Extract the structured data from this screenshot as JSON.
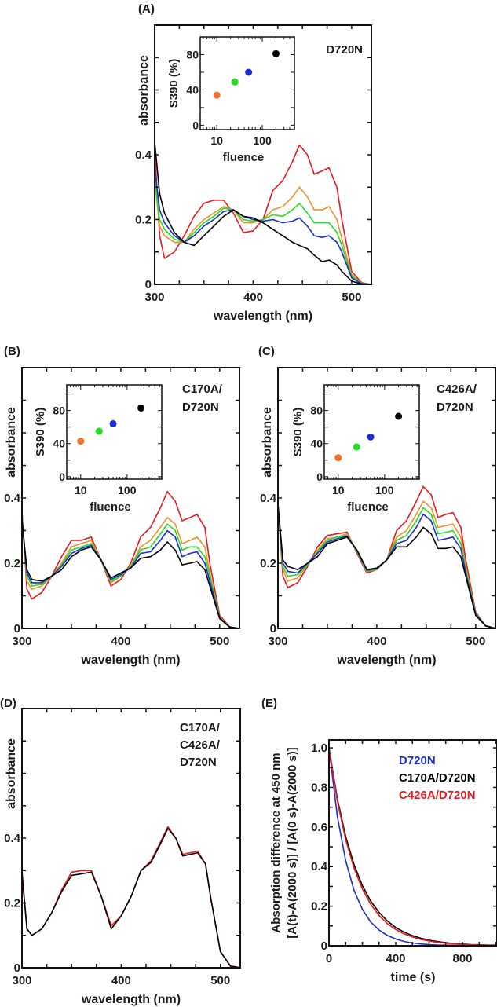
{
  "chart_data": [
    {
      "panel": "(A)",
      "type": "line",
      "xlabel": "wavelength (nm)",
      "ylabel": "absorbance",
      "xlim": [
        300,
        520
      ],
      "ylim": [
        0,
        0.8
      ],
      "xticks": [
        "300",
        "400",
        "500"
      ],
      "yticks": [
        "0",
        "0.2",
        "0.4"
      ],
      "annotation": [
        "D720N"
      ],
      "x": [
        300,
        305,
        310,
        320,
        330,
        340,
        350,
        360,
        370,
        380,
        390,
        400,
        410,
        420,
        430,
        440,
        447,
        455,
        462,
        470,
        477,
        485,
        490,
        500,
        510,
        520
      ],
      "series": [
        {
          "color": "#e8191e",
          "values": [
            0.42,
            0.15,
            0.08,
            0.1,
            0.15,
            0.21,
            0.25,
            0.26,
            0.26,
            0.22,
            0.16,
            0.165,
            0.2,
            0.29,
            0.32,
            0.38,
            0.43,
            0.4,
            0.34,
            0.35,
            0.36,
            0.3,
            0.2,
            0.04,
            0.005,
            0
          ]
        },
        {
          "color": "#f0902a",
          "values": [
            0.32,
            0.18,
            0.15,
            0.13,
            0.13,
            0.17,
            0.2,
            0.22,
            0.24,
            0.23,
            0.19,
            0.19,
            0.2,
            0.23,
            0.24,
            0.27,
            0.3,
            0.27,
            0.23,
            0.23,
            0.24,
            0.2,
            0.14,
            0.03,
            0.003,
            0
          ]
        },
        {
          "color": "#22dd22",
          "values": [
            0.33,
            0.2,
            0.17,
            0.14,
            0.13,
            0.16,
            0.19,
            0.21,
            0.235,
            0.23,
            0.2,
            0.195,
            0.2,
            0.215,
            0.21,
            0.23,
            0.25,
            0.22,
            0.19,
            0.19,
            0.19,
            0.16,
            0.12,
            0.025,
            0.003,
            0
          ]
        },
        {
          "color": "#1a2ed0",
          "values": [
            0.36,
            0.23,
            0.19,
            0.15,
            0.13,
            0.15,
            0.18,
            0.2,
            0.225,
            0.23,
            0.21,
            0.2,
            0.195,
            0.2,
            0.19,
            0.195,
            0.205,
            0.18,
            0.15,
            0.145,
            0.15,
            0.13,
            0.1,
            0.02,
            0.002,
            0
          ]
        },
        {
          "color": "#000000",
          "values": [
            0.44,
            0.28,
            0.22,
            0.16,
            0.13,
            0.12,
            0.15,
            0.18,
            0.21,
            0.23,
            0.21,
            0.205,
            0.19,
            0.17,
            0.15,
            0.13,
            0.12,
            0.11,
            0.09,
            0.07,
            0.075,
            0.06,
            0.04,
            0.01,
            0.001,
            0
          ]
        }
      ],
      "inset": {
        "type": "scatter",
        "xlabel": "fluence",
        "ylabel": "S390 (%)",
        "xscale": "log",
        "xlim": [
          4.3,
          510
        ],
        "ylim": [
          -5,
          100
        ],
        "xticks": [
          "10",
          "100"
        ],
        "yticks": [
          "0",
          "40",
          "80"
        ],
        "points": [
          {
            "x": 10,
            "y": 34,
            "color": "#f07030"
          },
          {
            "x": 25,
            "y": 49,
            "color": "#22dd22"
          },
          {
            "x": 50,
            "y": 60,
            "color": "#1a2ed0"
          },
          {
            "x": 200,
            "y": 81,
            "color": "#000000"
          }
        ]
      }
    },
    {
      "panel": "(B)",
      "type": "line",
      "xlabel": "wavelength (nm)",
      "ylabel": "absorbance",
      "xlim": [
        300,
        520
      ],
      "ylim": [
        0,
        0.8
      ],
      "xticks": [
        "300",
        "400",
        "500"
      ],
      "yticks": [
        "0",
        "0.2",
        "0.4"
      ],
      "annotation": [
        "C170A/",
        "D720N"
      ],
      "x": [
        300,
        305,
        310,
        320,
        330,
        340,
        350,
        360,
        370,
        380,
        390,
        400,
        410,
        420,
        430,
        440,
        447,
        455,
        462,
        470,
        477,
        485,
        490,
        500,
        510,
        520
      ],
      "series": [
        {
          "color": "#e8191e",
          "values": [
            0.36,
            0.12,
            0.09,
            0.11,
            0.16,
            0.22,
            0.27,
            0.27,
            0.28,
            0.21,
            0.13,
            0.15,
            0.2,
            0.28,
            0.31,
            0.37,
            0.42,
            0.39,
            0.33,
            0.34,
            0.35,
            0.31,
            0.2,
            0.04,
            0.005,
            0
          ]
        },
        {
          "color": "#f0902a",
          "values": [
            0.345,
            0.145,
            0.12,
            0.13,
            0.16,
            0.2,
            0.25,
            0.26,
            0.27,
            0.21,
            0.14,
            0.16,
            0.19,
            0.25,
            0.27,
            0.31,
            0.34,
            0.32,
            0.26,
            0.27,
            0.28,
            0.25,
            0.17,
            0.035,
            0.004,
            0
          ]
        },
        {
          "color": "#22dd22",
          "values": [
            0.34,
            0.16,
            0.13,
            0.135,
            0.16,
            0.195,
            0.24,
            0.25,
            0.26,
            0.21,
            0.145,
            0.16,
            0.19,
            0.24,
            0.25,
            0.29,
            0.32,
            0.3,
            0.24,
            0.25,
            0.25,
            0.22,
            0.16,
            0.033,
            0.004,
            0
          ]
        },
        {
          "color": "#1a2ed0",
          "values": [
            0.335,
            0.17,
            0.14,
            0.14,
            0.16,
            0.19,
            0.23,
            0.245,
            0.255,
            0.21,
            0.15,
            0.165,
            0.185,
            0.23,
            0.235,
            0.27,
            0.3,
            0.28,
            0.22,
            0.23,
            0.235,
            0.2,
            0.145,
            0.032,
            0.004,
            0
          ]
        },
        {
          "color": "#000000",
          "values": [
            0.33,
            0.18,
            0.15,
            0.145,
            0.16,
            0.18,
            0.22,
            0.24,
            0.25,
            0.21,
            0.155,
            0.17,
            0.185,
            0.215,
            0.22,
            0.24,
            0.265,
            0.24,
            0.195,
            0.2,
            0.205,
            0.18,
            0.13,
            0.03,
            0.004,
            0
          ]
        }
      ],
      "inset": {
        "type": "scatter",
        "xlabel": "fluence",
        "ylabel": "S390 (%)",
        "xscale": "log",
        "xlim": [
          5,
          560
        ],
        "ylim": [
          -3,
          111
        ],
        "xticks": [
          "10",
          "100"
        ],
        "yticks": [
          "0",
          "40",
          "80"
        ],
        "points": [
          {
            "x": 10,
            "y": 43,
            "color": "#f07030"
          },
          {
            "x": 25,
            "y": 55,
            "color": "#22dd22"
          },
          {
            "x": 50,
            "y": 64,
            "color": "#1a2ed0"
          },
          {
            "x": 200,
            "y": 83,
            "color": "#000000"
          }
        ]
      }
    },
    {
      "panel": "(C)",
      "type": "line",
      "xlabel": "wavelength (nm)",
      "ylabel": "absorbance",
      "xlim": [
        300,
        520
      ],
      "ylim": [
        0,
        0.8
      ],
      "xticks": [
        "300",
        "400",
        "500"
      ],
      "yticks": [
        "0",
        "0.2",
        "0.4"
      ],
      "annotation": [
        "C426A/",
        "D720N"
      ],
      "x": [
        300,
        305,
        310,
        320,
        330,
        340,
        350,
        360,
        370,
        380,
        390,
        400,
        410,
        420,
        430,
        440,
        447,
        455,
        462,
        470,
        477,
        485,
        490,
        500,
        510,
        520
      ],
      "series": [
        {
          "color": "#e8191e",
          "values": [
            0.38,
            0.16,
            0.125,
            0.14,
            0.19,
            0.25,
            0.285,
            0.29,
            0.295,
            0.23,
            0.17,
            0.18,
            0.21,
            0.3,
            0.33,
            0.39,
            0.435,
            0.41,
            0.34,
            0.35,
            0.355,
            0.31,
            0.21,
            0.05,
            0.008,
            0
          ]
        },
        {
          "color": "#f0902a",
          "values": [
            0.38,
            0.18,
            0.145,
            0.155,
            0.195,
            0.24,
            0.275,
            0.28,
            0.29,
            0.235,
            0.175,
            0.18,
            0.21,
            0.28,
            0.3,
            0.35,
            0.39,
            0.37,
            0.31,
            0.315,
            0.32,
            0.28,
            0.19,
            0.045,
            0.008,
            0
          ]
        },
        {
          "color": "#22dd22",
          "values": [
            0.38,
            0.19,
            0.16,
            0.165,
            0.195,
            0.235,
            0.27,
            0.28,
            0.285,
            0.235,
            0.175,
            0.182,
            0.21,
            0.27,
            0.285,
            0.33,
            0.37,
            0.35,
            0.29,
            0.295,
            0.3,
            0.26,
            0.18,
            0.045,
            0.008,
            0
          ]
        },
        {
          "color": "#1a2ed0",
          "values": [
            0.38,
            0.2,
            0.175,
            0.17,
            0.2,
            0.23,
            0.265,
            0.275,
            0.283,
            0.238,
            0.178,
            0.183,
            0.21,
            0.26,
            0.27,
            0.31,
            0.35,
            0.33,
            0.27,
            0.275,
            0.28,
            0.245,
            0.17,
            0.043,
            0.008,
            0
          ]
        },
        {
          "color": "#000000",
          "values": [
            0.38,
            0.21,
            0.19,
            0.18,
            0.2,
            0.22,
            0.26,
            0.27,
            0.28,
            0.24,
            0.18,
            0.185,
            0.21,
            0.25,
            0.25,
            0.28,
            0.31,
            0.29,
            0.245,
            0.245,
            0.25,
            0.22,
            0.16,
            0.04,
            0.008,
            0
          ]
        }
      ],
      "inset": {
        "type": "scatter",
        "xlabel": "fluence",
        "ylabel": "S390 (%)",
        "xscale": "log",
        "xlim": [
          5,
          560
        ],
        "ylim": [
          -3,
          111
        ],
        "xticks": [
          "10",
          "100"
        ],
        "yticks": [
          "0",
          "40",
          "80"
        ],
        "points": [
          {
            "x": 10,
            "y": 23,
            "color": "#f07030"
          },
          {
            "x": 25,
            "y": 36,
            "color": "#22dd22"
          },
          {
            "x": 50,
            "y": 48,
            "color": "#1a2ed0"
          },
          {
            "x": 200,
            "y": 73,
            "color": "#000000"
          }
        ]
      }
    },
    {
      "panel": "(D)",
      "type": "line",
      "xlabel": "wavelength (nm)",
      "ylabel": "absorbance",
      "xlim": [
        300,
        520
      ],
      "ylim": [
        0,
        0.8
      ],
      "xticks": [
        "300",
        "400",
        "500"
      ],
      "yticks": [
        "0",
        "0.2",
        "0.4"
      ],
      "annotation": [
        "C170A/",
        "C426A/",
        "D720N"
      ],
      "x": [
        300,
        305,
        310,
        320,
        330,
        340,
        350,
        360,
        370,
        380,
        390,
        400,
        410,
        420,
        430,
        440,
        447,
        455,
        462,
        470,
        477,
        485,
        490,
        500,
        510,
        520
      ],
      "series": [
        {
          "color": "#e8191e",
          "values": [
            0.3,
            0.12,
            0.1,
            0.12,
            0.17,
            0.24,
            0.295,
            0.3,
            0.3,
            0.22,
            0.13,
            0.16,
            0.22,
            0.3,
            0.33,
            0.39,
            0.435,
            0.4,
            0.35,
            0.355,
            0.36,
            0.32,
            0.22,
            0.05,
            0.006,
            0
          ]
        },
        {
          "color": "#000000",
          "values": [
            0.29,
            0.12,
            0.1,
            0.12,
            0.17,
            0.235,
            0.285,
            0.29,
            0.295,
            0.22,
            0.12,
            0.16,
            0.22,
            0.3,
            0.325,
            0.385,
            0.43,
            0.4,
            0.345,
            0.35,
            0.355,
            0.32,
            0.22,
            0.05,
            0.005,
            0
          ]
        }
      ]
    },
    {
      "panel": "(E)",
      "type": "line",
      "xlabel": "time (s)",
      "ylabel": [
        "Absorption difference at 450 nm",
        "[A(t)-A(2000 s)] / [A(0 s)-A(2000 s)]"
      ],
      "xlim": [
        0,
        1007
      ],
      "ylim": [
        0,
        1.04
      ],
      "xticks": [
        "0",
        "400",
        "800"
      ],
      "yticks": [
        "0",
        "0.2",
        "0.4",
        "0.6",
        "0.8",
        "1.0"
      ],
      "x": [
        0,
        50,
        100,
        150,
        200,
        250,
        300,
        350,
        400,
        450,
        500,
        550,
        600,
        650,
        700,
        750,
        800,
        850,
        900,
        950,
        1000
      ],
      "series": [
        {
          "name": "D720N",
          "color": "#1a2ed0",
          "values": [
            1,
            0.655,
            0.429,
            0.28,
            0.184,
            0.12,
            0.079,
            0.052,
            0.034,
            0.022,
            0.014,
            0.009,
            0.006,
            0.004,
            0.003,
            0.002,
            0.001,
            0,
            0,
            0,
            0
          ]
        },
        {
          "name": "C170A/D720N",
          "color": "#000000",
          "values": [
            1,
            0.743,
            0.551,
            0.41,
            0.304,
            0.226,
            0.168,
            0.125,
            0.092,
            0.069,
            0.051,
            0.038,
            0.028,
            0.021,
            0.015,
            0.011,
            0.009,
            0.006,
            0.005,
            0.003,
            0.003
          ]
        },
        {
          "name": "C426A/D720N",
          "color": "#e8191e",
          "values": [
            1,
            0.732,
            0.535,
            0.392,
            0.287,
            0.21,
            0.153,
            0.112,
            0.082,
            0.06,
            0.044,
            0.032,
            0.024,
            0.017,
            0.013,
            0.009,
            0.007,
            0.005,
            0.004,
            0.003,
            0.002
          ]
        }
      ],
      "legend_position": "top-right"
    }
  ]
}
